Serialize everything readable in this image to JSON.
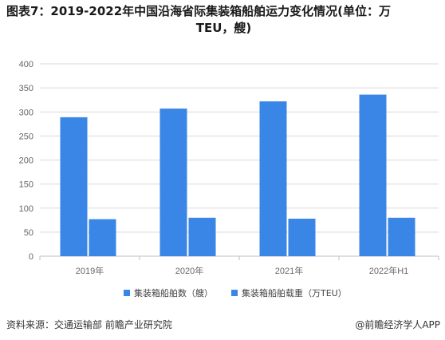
{
  "title_line1": "图表7：2019-2022年中国沿海省际集装箱船舶运力变化情况(单位：万",
  "title_line2": "TEU，艘)",
  "source": "资料来源：交通运输部 前瞻产业研究院",
  "credit": "@前瞻经济学人APP",
  "colors": {
    "series1": "#3a86e6",
    "series2": "#3a86e6",
    "grid": "#d9d9d9",
    "axis": "#bfbfbf"
  },
  "chart_data": {
    "type": "bar",
    "categories": [
      "2019年",
      "2020年",
      "2021年",
      "2022年H1"
    ],
    "series": [
      {
        "name": "集装箱船舶数（艘）",
        "values": [
          289,
          307,
          322,
          336
        ]
      },
      {
        "name": "集装箱船舶载重（万TEU）",
        "values": [
          77,
          80,
          78,
          80
        ]
      }
    ],
    "ylim": [
      0,
      400
    ],
    "yticks": [
      0,
      50,
      100,
      150,
      200,
      250,
      300,
      350,
      400
    ],
    "grid": true,
    "legend_position": "bottom"
  }
}
